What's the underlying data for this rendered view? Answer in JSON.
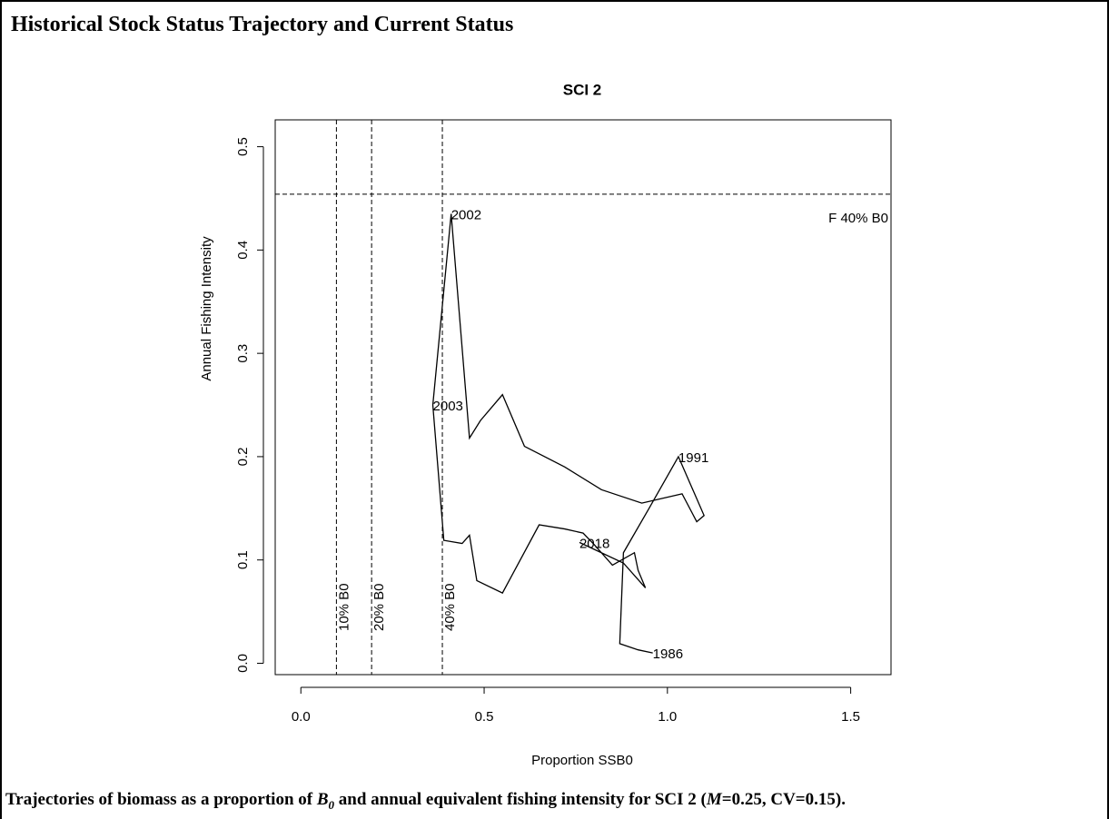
{
  "header": {
    "title": "Historical Stock Status Trajectory and Current Status"
  },
  "chart_data": {
    "type": "line",
    "title": "SCI 2",
    "x_label": "Proportion SSB0",
    "y_label": "Annual Fishing Intensity",
    "xlim": [
      -0.07,
      1.61
    ],
    "ylim": [
      -0.011,
      0.526
    ],
    "xticks": [
      {
        "value": 0,
        "label": "0.0"
      },
      0.5,
      {
        "value": 1,
        "label": "1.0"
      },
      1.5
    ],
    "yticks": [
      {
        "value": 0,
        "label": "0.0"
      },
      0.1,
      0.2,
      0.3,
      0.4,
      0.5
    ],
    "color": "#000000",
    "series": [
      {
        "x": [
          0.96,
          0.92,
          0.87,
          0.88,
          0.95,
          1.03,
          1.1,
          1.08,
          1.04,
          0.93,
          0.82,
          0.72,
          0.61,
          0.55,
          0.49,
          0.46,
          0.41,
          0.36,
          0.39,
          0.44,
          0.46,
          0.48,
          0.55,
          0.65,
          0.72,
          0.77,
          0.8,
          0.85,
          0.91,
          0.92,
          0.94,
          0.88,
          0.76
        ],
        "values": [
          0.01,
          0.013,
          0.019,
          0.107,
          0.15,
          0.2,
          0.143,
          0.137,
          0.164,
          0.155,
          0.168,
          0.19,
          0.21,
          0.26,
          0.235,
          0.218,
          0.435,
          0.25,
          0.119,
          0.116,
          0.124,
          0.08,
          0.068,
          0.134,
          0.13,
          0.126,
          0.115,
          0.095,
          0.107,
          0.09,
          0.073,
          0.097,
          0.117
        ],
        "point_labels": [
          1986,
          null,
          null,
          null,
          null,
          1991,
          null,
          null,
          null,
          null,
          null,
          null,
          null,
          null,
          null,
          null,
          2002,
          2003,
          null,
          null,
          null,
          null,
          null,
          null,
          null,
          null,
          null,
          null,
          null,
          null,
          null,
          null,
          2018
        ]
      }
    ],
    "vlines": [
      {
        "value": 0.097,
        "label": "10% B0"
      },
      {
        "value": 0.193,
        "label": "20% B0"
      },
      {
        "value": 0.386,
        "label": "40% B0"
      }
    ],
    "hlines": [
      {
        "value": 0.454,
        "label": "F 40% B0"
      }
    ]
  },
  "caption": [
    "Trajectories of biomass as a proportion of ",
    "B",
    "0",
    " and annual equivalent fishing intensity for SCI 2 (",
    "M",
    "=0.25, CV=0.15)."
  ]
}
